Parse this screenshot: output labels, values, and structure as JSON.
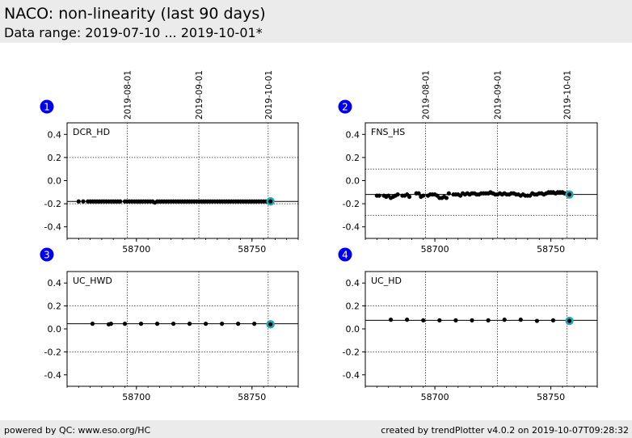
{
  "header": {
    "title": "NACO: non-linearity (last 90 days)",
    "subtitle": "Data range: 2019-07-10 ... 2019-10-01*"
  },
  "footer": {
    "left": "powered by QC: www.eso.org/HC",
    "right": "created by trendPlotter v4.0.2 on 2019-10-07T09:28:32"
  },
  "colors": {
    "header_bg": "#ebebeb",
    "marker": "#000000",
    "badge": "#0000ee",
    "last_point_highlight": "#1fa8b4"
  },
  "chart_data": [
    {
      "panel": "1",
      "type": "scatter",
      "label": "DCR_HD",
      "xlim": [
        58670,
        58770
      ],
      "ylim": [
        -0.5,
        0.5
      ],
      "xticks": [
        58700,
        58750
      ],
      "yticks": [
        0.4,
        0.2,
        0.0,
        -0.2,
        -0.4
      ],
      "date_ticks": [
        {
          "label": "2019-08-01",
          "x": 58696
        },
        {
          "label": "2019-09-01",
          "x": 58727
        },
        {
          "label": "2019-10-01",
          "x": 58757
        }
      ],
      "ref_line": -0.18,
      "upper_limit": 0.2,
      "lower_limit": -0.2,
      "x": [
        58675,
        58677,
        58679,
        58680,
        58681,
        58682,
        58683,
        58684,
        58685,
        58686,
        58687,
        58688,
        58689,
        58690,
        58691,
        58692,
        58693,
        58695,
        58696,
        58697,
        58698,
        58699,
        58700,
        58701,
        58702,
        58703,
        58704,
        58705,
        58706,
        58707,
        58708,
        58709,
        58710,
        58711,
        58712,
        58713,
        58714,
        58715,
        58716,
        58717,
        58718,
        58719,
        58720,
        58721,
        58722,
        58723,
        58724,
        58725,
        58726,
        58727,
        58728,
        58729,
        58730,
        58731,
        58732,
        58733,
        58734,
        58735,
        58736,
        58737,
        58738,
        58739,
        58740,
        58741,
        58742,
        58743,
        58744,
        58745,
        58746,
        58747,
        58748,
        58749,
        58750,
        58751,
        58752,
        58753,
        58754,
        58755,
        58756,
        58757,
        58758
      ],
      "y": [
        -0.18,
        -0.18,
        -0.18,
        -0.18,
        -0.18,
        -0.18,
        -0.18,
        -0.18,
        -0.18,
        -0.18,
        -0.18,
        -0.18,
        -0.18,
        -0.18,
        -0.18,
        -0.18,
        -0.18,
        -0.18,
        -0.18,
        -0.18,
        -0.18,
        -0.18,
        -0.18,
        -0.18,
        -0.18,
        -0.18,
        -0.18,
        -0.18,
        -0.18,
        -0.18,
        -0.19,
        -0.18,
        -0.18,
        -0.18,
        -0.18,
        -0.18,
        -0.18,
        -0.18,
        -0.18,
        -0.18,
        -0.18,
        -0.18,
        -0.18,
        -0.18,
        -0.18,
        -0.18,
        -0.18,
        -0.18,
        -0.18,
        -0.18,
        -0.18,
        -0.18,
        -0.18,
        -0.18,
        -0.18,
        -0.18,
        -0.18,
        -0.18,
        -0.18,
        -0.18,
        -0.18,
        -0.18,
        -0.18,
        -0.18,
        -0.18,
        -0.18,
        -0.18,
        -0.18,
        -0.18,
        -0.18,
        -0.18,
        -0.18,
        -0.18,
        -0.18,
        -0.18,
        -0.18,
        -0.18,
        -0.18,
        -0.18,
        -0.18,
        -0.18
      ]
    },
    {
      "panel": "2",
      "type": "scatter",
      "label": "FNS_HS",
      "xlim": [
        58670,
        58770
      ],
      "ylim": [
        -0.5,
        0.5
      ],
      "xticks": [
        58700,
        58750
      ],
      "yticks": [
        0.4,
        0.2,
        0.0,
        -0.2,
        -0.4
      ],
      "date_ticks": [
        {
          "label": "2019-08-01",
          "x": 58696
        },
        {
          "label": "2019-09-01",
          "x": 58727
        },
        {
          "label": "2019-10-01",
          "x": 58757
        }
      ],
      "ref_line": -0.12,
      "upper_limit": 0.1,
      "lower_limit": -0.3,
      "x": [
        58675,
        58676,
        58678,
        58679,
        58680,
        58681,
        58682,
        58683,
        58684,
        58686,
        58687,
        58688,
        58689,
        58692,
        58693,
        58694,
        58695,
        58697,
        58698,
        58699,
        58700,
        58701,
        58702,
        58703,
        58704,
        58705,
        58706,
        58708,
        58709,
        58710,
        58711,
        58712,
        58713,
        58714,
        58715,
        58716,
        58717,
        58718,
        58719,
        58720,
        58721,
        58722,
        58723,
        58724,
        58725,
        58726,
        58727,
        58728,
        58729,
        58730,
        58731,
        58732,
        58733,
        58734,
        58735,
        58736,
        58737,
        58738,
        58739,
        58740,
        58741,
        58742,
        58743,
        58744,
        58745,
        58746,
        58747,
        58748,
        58749,
        58750,
        58751,
        58752,
        58753,
        58754,
        58755,
        58756,
        58757,
        58758
      ],
      "y": [
        -0.13,
        -0.13,
        -0.13,
        -0.14,
        -0.13,
        -0.15,
        -0.14,
        -0.13,
        -0.12,
        -0.13,
        -0.13,
        -0.12,
        -0.14,
        -0.11,
        -0.11,
        -0.14,
        -0.13,
        -0.13,
        -0.12,
        -0.12,
        -0.12,
        -0.13,
        -0.15,
        -0.15,
        -0.14,
        -0.15,
        -0.11,
        -0.12,
        -0.12,
        -0.12,
        -0.13,
        -0.11,
        -0.12,
        -0.11,
        -0.12,
        -0.11,
        -0.11,
        -0.12,
        -0.12,
        -0.11,
        -0.11,
        -0.11,
        -0.11,
        -0.1,
        -0.11,
        -0.12,
        -0.12,
        -0.11,
        -0.12,
        -0.11,
        -0.12,
        -0.12,
        -0.11,
        -0.11,
        -0.12,
        -0.12,
        -0.13,
        -0.12,
        -0.13,
        -0.13,
        -0.13,
        -0.11,
        -0.12,
        -0.12,
        -0.11,
        -0.11,
        -0.12,
        -0.11,
        -0.1,
        -0.1,
        -0.1,
        -0.11,
        -0.1,
        -0.1,
        -0.1,
        -0.11,
        -0.11,
        -0.12
      ]
    },
    {
      "panel": "3",
      "type": "scatter",
      "label": "UC_HWD",
      "xlim": [
        58670,
        58770
      ],
      "ylim": [
        -0.5,
        0.5
      ],
      "xticks": [
        58700,
        58750
      ],
      "yticks": [
        0.4,
        0.2,
        0.0,
        -0.2,
        -0.4
      ],
      "date_ticks": [
        {
          "label": "2019-08-01",
          "x": 58696
        },
        {
          "label": "2019-09-01",
          "x": 58727
        },
        {
          "label": "2019-10-01",
          "x": 58757
        }
      ],
      "ref_line": 0.045,
      "upper_limit": 0.2,
      "lower_limit": -0.2,
      "x": [
        58681,
        58688,
        58689,
        58695,
        58702,
        58709,
        58716,
        58723,
        58730,
        58737,
        58744,
        58751,
        58758
      ],
      "y": [
        0.045,
        0.04,
        0.045,
        0.045,
        0.045,
        0.045,
        0.045,
        0.045,
        0.045,
        0.045,
        0.045,
        0.045,
        0.04
      ]
    },
    {
      "panel": "4",
      "type": "scatter",
      "label": "UC_HD",
      "xlim": [
        58670,
        58770
      ],
      "ylim": [
        -0.5,
        0.5
      ],
      "xticks": [
        58700,
        58750
      ],
      "yticks": [
        0.4,
        0.2,
        0.0,
        -0.2,
        -0.4
      ],
      "date_ticks": [
        {
          "label": "2019-08-01",
          "x": 58696
        },
        {
          "label": "2019-09-01",
          "x": 58727
        },
        {
          "label": "2019-10-01",
          "x": 58757
        }
      ],
      "ref_line": 0.075,
      "upper_limit": 0.2,
      "lower_limit": -0.2,
      "x": [
        58681,
        58688,
        58695,
        58702,
        58709,
        58716,
        58723,
        58730,
        58737,
        58744,
        58751,
        58758
      ],
      "y": [
        0.08,
        0.08,
        0.075,
        0.075,
        0.075,
        0.075,
        0.075,
        0.08,
        0.08,
        0.07,
        0.075,
        0.07
      ]
    }
  ]
}
